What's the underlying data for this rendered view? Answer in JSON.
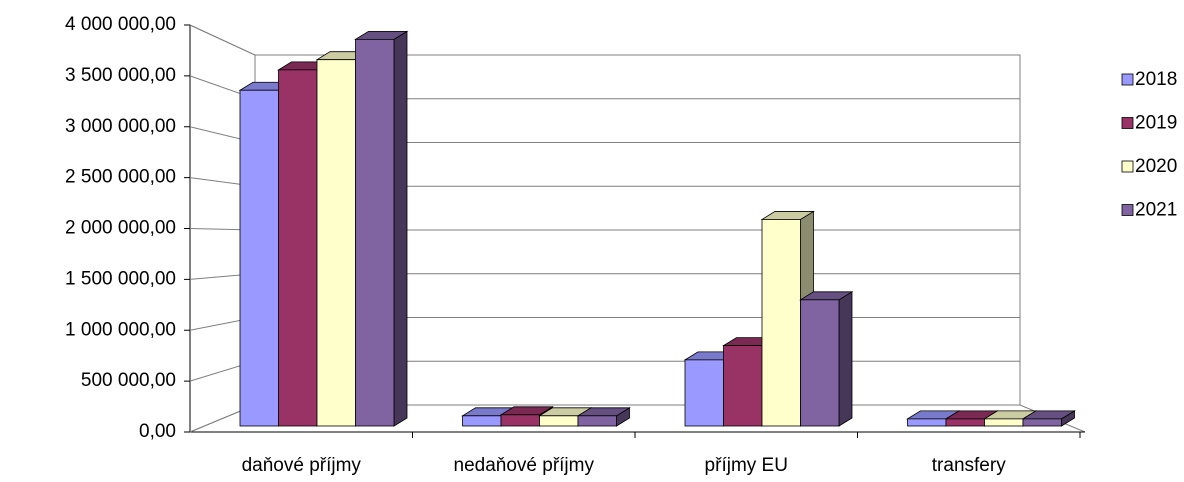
{
  "chart_data": {
    "type": "bar3d",
    "categories": [
      "daňové příjmy",
      "nedaňové příjmy",
      "příjmy EU",
      "transfery"
    ],
    "series": [
      {
        "name": "2018",
        "color": "#9999ff",
        "values": [
          3300000,
          100000,
          650000,
          70000
        ]
      },
      {
        "name": "2019",
        "color": "#993366",
        "values": [
          3500000,
          110000,
          790000,
          70000
        ]
      },
      {
        "name": "2020",
        "color": "#ffffcc",
        "values": [
          3600000,
          100000,
          2030000,
          70000
        ]
      },
      {
        "name": "2021",
        "color": "#8064a2",
        "values": [
          3800000,
          100000,
          1240000,
          70000
        ]
      }
    ],
    "ylim": [
      0,
      4000000
    ],
    "yticks": [
      {
        "value": 0,
        "label": "0,00"
      },
      {
        "value": 500000,
        "label": "500 000,00"
      },
      {
        "value": 1000000,
        "label": "1 000 000,00"
      },
      {
        "value": 1500000,
        "label": "1 500 000,00"
      },
      {
        "value": 2000000,
        "label": "2 000 000,00"
      },
      {
        "value": 2500000,
        "label": "2 500 000,00"
      },
      {
        "value": 3000000,
        "label": "3 000 000,00"
      },
      {
        "value": 3500000,
        "label": "3 500 000,00"
      },
      {
        "value": 4000000,
        "label": "4 000 000,00"
      }
    ],
    "grid": true,
    "legend": "right"
  }
}
